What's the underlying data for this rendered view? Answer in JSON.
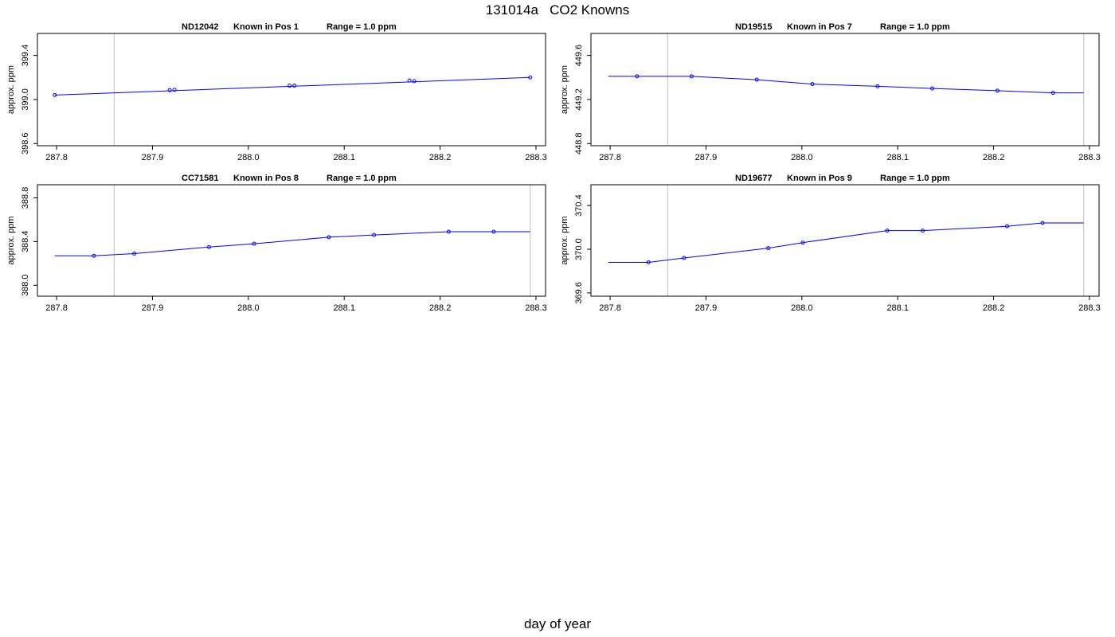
{
  "page": {
    "title": "131014a   CO2 Knowns",
    "xlabel": "day of year"
  },
  "colors": {
    "series": "#0000ff",
    "frame": "#000000",
    "vline": "#bebebe"
  },
  "chart_data": [
    {
      "type": "line",
      "panel_id": "ND12042",
      "title_parts": [
        "ND12042",
        "Known in Pos 1",
        "Range = 1.0 ppm"
      ],
      "ylabel": "approx. ppm",
      "xlim": [
        287.78,
        288.31
      ],
      "ylim": [
        398.58,
        399.6
      ],
      "xticks": [
        "287.8",
        "287.9",
        "288.0",
        "288.1",
        "288.2",
        "288.3"
      ],
      "yticks": [
        "398.6",
        "399.0",
        "399.4"
      ],
      "ref_lines_x": [
        287.86
      ],
      "line_x": [
        287.798,
        288.294
      ],
      "line_y": [
        399.04,
        399.2
      ],
      "points": [
        [
          287.798,
          399.04
        ],
        [
          287.918,
          399.085
        ],
        [
          287.923,
          399.087
        ],
        [
          288.043,
          399.125
        ],
        [
          288.048,
          399.126
        ],
        [
          288.168,
          399.172
        ],
        [
          288.173,
          399.167
        ],
        [
          288.294,
          399.2
        ]
      ]
    },
    {
      "type": "line",
      "panel_id": "ND19515",
      "title_parts": [
        "ND19515",
        "Known in Pos 7",
        "Range = 1.0 ppm"
      ],
      "ylabel": "approx. ppm",
      "xlim": [
        287.78,
        288.31
      ],
      "ylim": [
        448.78,
        449.8
      ],
      "xticks": [
        "287.8",
        "287.9",
        "288.0",
        "288.1",
        "288.2",
        "288.3"
      ],
      "yticks": [
        "448.8",
        "449.2",
        "449.6"
      ],
      "ref_lines_x": [
        287.86,
        288.294
      ],
      "line_x": [
        287.798,
        287.828,
        287.885,
        287.953,
        288.011,
        288.079,
        288.136,
        288.204,
        288.262,
        288.294
      ],
      "line_y": [
        449.41,
        449.41,
        449.41,
        449.38,
        449.34,
        449.32,
        449.3,
        449.28,
        449.26,
        449.26
      ],
      "points": [
        [
          287.828,
          449.41
        ],
        [
          287.885,
          449.41
        ],
        [
          287.953,
          449.38
        ],
        [
          288.011,
          449.34
        ],
        [
          288.079,
          449.32
        ],
        [
          288.136,
          449.3
        ],
        [
          288.204,
          449.28
        ],
        [
          288.262,
          449.26
        ]
      ]
    },
    {
      "type": "line",
      "panel_id": "CC71581",
      "title_parts": [
        "CC71581",
        "Known in Pos 8",
        "Range = 1.0 ppm"
      ],
      "ylabel": "approx. ppm",
      "xlim": [
        287.78,
        288.31
      ],
      "ylim": [
        387.9,
        388.92
      ],
      "xticks": [
        "287.8",
        "287.9",
        "288.0",
        "288.1",
        "288.2",
        "288.3"
      ],
      "yticks": [
        "388.0",
        "388.4",
        "388.8"
      ],
      "ref_lines_x": [
        287.86,
        288.294
      ],
      "line_x": [
        287.798,
        287.839,
        287.881,
        287.959,
        288.006,
        288.084,
        288.131,
        288.209,
        288.256,
        288.294
      ],
      "line_y": [
        388.27,
        388.27,
        388.29,
        388.35,
        388.38,
        388.44,
        388.46,
        388.49,
        388.49,
        388.49
      ],
      "points": [
        [
          287.839,
          388.27
        ],
        [
          287.881,
          388.29
        ],
        [
          287.959,
          388.35
        ],
        [
          288.006,
          388.38
        ],
        [
          288.084,
          388.44
        ],
        [
          288.131,
          388.46
        ],
        [
          288.209,
          388.49
        ],
        [
          288.256,
          388.49
        ]
      ]
    },
    {
      "type": "line",
      "panel_id": "ND19677",
      "title_parts": [
        "ND19677",
        "Known in Pos 9",
        "Range = 1.0 ppm"
      ],
      "ylabel": "approx. ppm",
      "xlim": [
        287.78,
        288.31
      ],
      "ylim": [
        369.57,
        370.59
      ],
      "xticks": [
        "287.8",
        "287.9",
        "288.0",
        "288.1",
        "288.2",
        "288.3"
      ],
      "yticks": [
        "369.6",
        "370.0",
        "370.4"
      ],
      "ref_lines_x": [
        287.86,
        288.294
      ],
      "line_x": [
        287.798,
        287.84,
        287.877,
        287.965,
        288.001,
        288.089,
        288.126,
        288.214,
        288.251,
        288.294
      ],
      "line_y": [
        369.88,
        369.88,
        369.92,
        370.01,
        370.06,
        370.17,
        370.17,
        370.21,
        370.24,
        370.24
      ],
      "points": [
        [
          287.84,
          369.88
        ],
        [
          287.877,
          369.92
        ],
        [
          287.965,
          370.01
        ],
        [
          288.001,
          370.06
        ],
        [
          288.089,
          370.17
        ],
        [
          288.126,
          370.17
        ],
        [
          288.214,
          370.21
        ],
        [
          288.251,
          370.24
        ]
      ]
    }
  ]
}
